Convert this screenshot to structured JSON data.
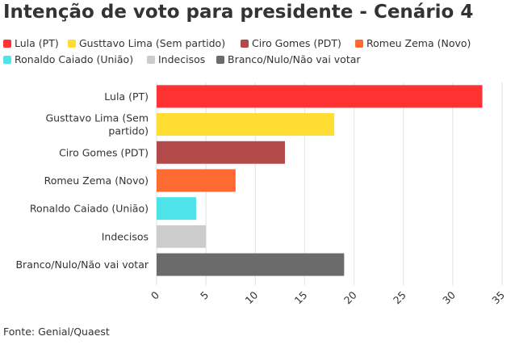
{
  "title": "Intenção de voto para presidente - Cenário 4",
  "source": "Fonte: Genial/Quaest",
  "chart_data": {
    "type": "bar",
    "orientation": "horizontal",
    "title": "Intenção de voto para presidente - Cenário 4",
    "categories": [
      "Lula (PT)",
      "Gusttavo Lima (Sem partido)",
      "Ciro Gomes (PDT)",
      "Romeu Zema (Novo)",
      "Ronaldo Caiado (União)",
      "Indecisos",
      "Branco/Nulo/Não vai votar"
    ],
    "values": [
      33,
      18,
      13,
      8,
      4,
      5,
      19
    ],
    "colors": [
      "#ff3333",
      "#ffdd33",
      "#b24a4a",
      "#ff6a33",
      "#4ee3e8",
      "#cccccc",
      "#6b6b6b"
    ],
    "xlim": [
      0,
      35
    ],
    "xticks": [
      0,
      5,
      10,
      15,
      20,
      25,
      30,
      35
    ],
    "grid": true,
    "legend_position": "top"
  },
  "legend": [
    {
      "label": "Lula (PT)",
      "color": "#ff3333"
    },
    {
      "label": "Gusttavo Lima (Sem partido)",
      "color": "#ffdd33"
    },
    {
      "label": "Ciro Gomes (PDT)",
      "color": "#b24a4a"
    },
    {
      "label": "Romeu Zema (Novo)",
      "color": "#ff6a33"
    },
    {
      "label": "Ronaldo Caiado (União)",
      "color": "#4ee3e8"
    },
    {
      "label": "Indecisos",
      "color": "#cccccc"
    },
    {
      "label": "Branco/Nulo/Não vai votar",
      "color": "#6b6b6b"
    }
  ]
}
